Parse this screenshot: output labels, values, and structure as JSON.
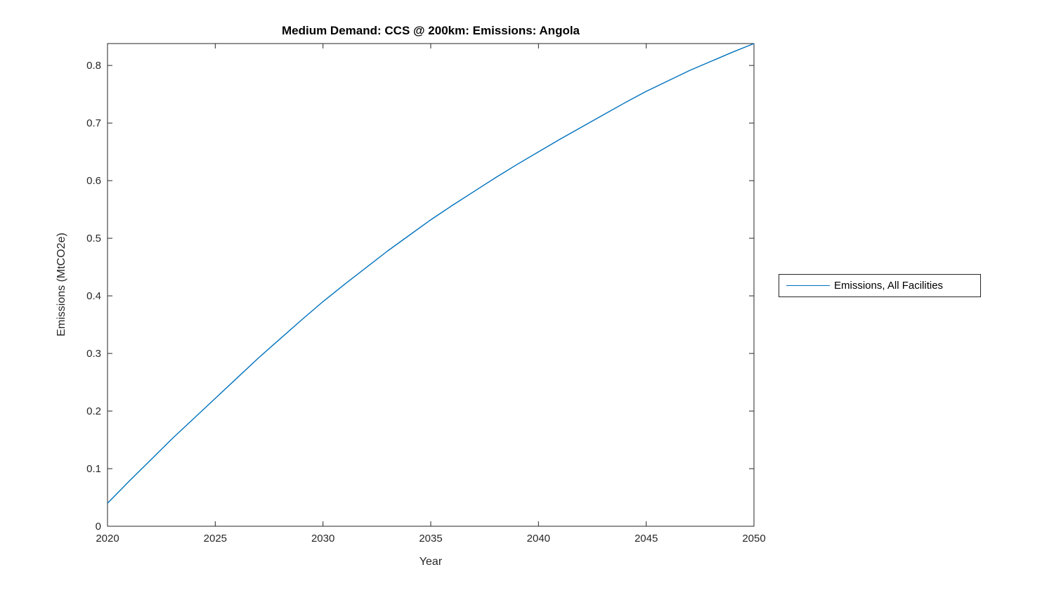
{
  "figure": {
    "background": "#ffffff",
    "axis_color": "#262626",
    "tick_label_color": "#262626",
    "title": "Medium Demand: CCS @ 200km: Emissions: Angola",
    "xlabel": "Year",
    "ylabel": "Emissions (MtCO2e)"
  },
  "legend": {
    "entries": [
      {
        "label": "Emissions, All Facilities",
        "color": "#0072BD"
      }
    ]
  },
  "chart_data": {
    "type": "line",
    "title": "Medium Demand: CCS @ 200km: Emissions: Angola",
    "xlabel": "Year",
    "ylabel": "Emissions (MtCO2e)",
    "xlim": [
      2020,
      2050
    ],
    "ylim": [
      0,
      0.838
    ],
    "xticks": [
      2020,
      2025,
      2030,
      2035,
      2040,
      2045,
      2050
    ],
    "yticks": [
      0,
      0.1,
      0.2,
      0.3,
      0.4,
      0.5,
      0.6,
      0.7,
      0.8
    ],
    "grid": false,
    "box": true,
    "tick_direction": "in",
    "legend_position": "outside-right",
    "series": [
      {
        "name": "Emissions, All Facilities",
        "color": "#0072BD",
        "x": [
          2020,
          2021,
          2022,
          2023,
          2024,
          2025,
          2026,
          2027,
          2028,
          2029,
          2030,
          2031,
          2032,
          2033,
          2034,
          2035,
          2036,
          2037,
          2038,
          2039,
          2040,
          2041,
          2042,
          2043,
          2044,
          2045,
          2046,
          2047,
          2048,
          2049,
          2050
        ],
        "values": [
          0.04,
          0.078,
          0.115,
          0.152,
          0.187,
          0.222,
          0.257,
          0.292,
          0.325,
          0.358,
          0.39,
          0.42,
          0.449,
          0.478,
          0.505,
          0.532,
          0.557,
          0.581,
          0.605,
          0.628,
          0.65,
          0.672,
          0.693,
          0.714,
          0.735,
          0.755,
          0.773,
          0.791,
          0.807,
          0.823,
          0.838
        ]
      }
    ]
  }
}
